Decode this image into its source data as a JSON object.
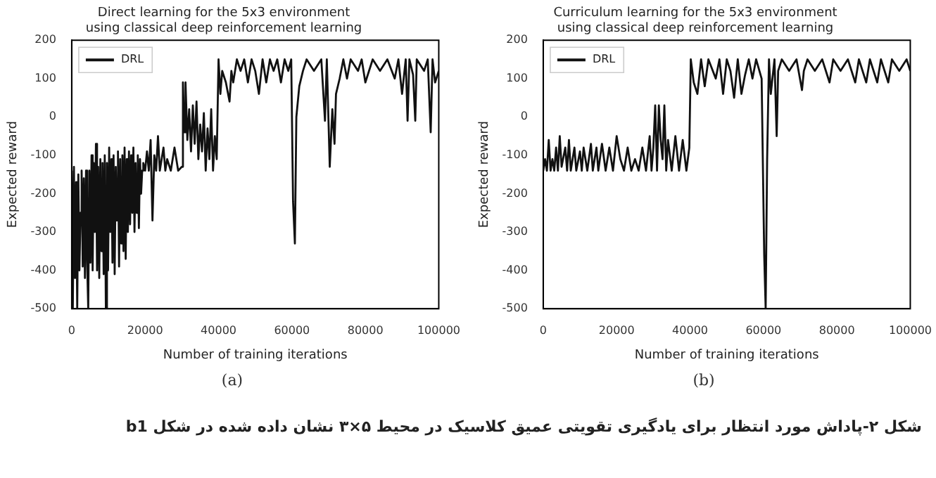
{
  "chart_data": [
    {
      "type": "line",
      "title": "Direct learning for the 5x3 environment\nusing classical deep reinforcement learning",
      "xlabel": "Number of training iterations",
      "ylabel": "Expected reward",
      "xlim": [
        0,
        100000
      ],
      "ylim": [
        -500,
        200
      ],
      "xticks": [
        0,
        20000,
        40000,
        60000,
        80000,
        100000
      ],
      "yticks": [
        -500,
        -400,
        -300,
        -200,
        -100,
        0,
        100,
        200
      ],
      "legend": "top left",
      "annotations": [
        "(a)"
      ],
      "x": [
        0,
        300,
        600,
        900,
        1200,
        1500,
        1800,
        2100,
        2400,
        2700,
        3000,
        3300,
        3600,
        3900,
        4200,
        4500,
        4800,
        5100,
        5400,
        5700,
        6000,
        6300,
        6600,
        6900,
        7200,
        7500,
        7800,
        8100,
        8400,
        8700,
        9000,
        9300,
        9600,
        9900,
        10200,
        10500,
        10800,
        11100,
        11400,
        11700,
        12000,
        12300,
        12600,
        12900,
        13200,
        13500,
        13800,
        14100,
        14400,
        14700,
        15000,
        15300,
        15600,
        15900,
        16200,
        16500,
        16800,
        17100,
        17400,
        17700,
        18000,
        18300,
        18600,
        18900,
        19200,
        19500,
        20000,
        20500,
        21000,
        21500,
        22000,
        22500,
        23000,
        23500,
        24000,
        25000,
        25500,
        26000,
        27000,
        28000,
        29000,
        30000,
        30300,
        30700,
        31000,
        31500,
        32000,
        32500,
        33000,
        33500,
        34000,
        34500,
        35000,
        35500,
        36000,
        36500,
        37000,
        37500,
        38000,
        38500,
        39000,
        39500,
        40000,
        40500,
        41000,
        42000,
        43000,
        43500,
        44000,
        45000,
        46000,
        47000,
        48000,
        49000,
        50000,
        51000,
        52000,
        53000,
        54000,
        55000,
        56000,
        57000,
        58000,
        59000,
        59800,
        60300,
        60800,
        61200,
        62000,
        63000,
        64000,
        66000,
        68000,
        69000,
        69500,
        70300,
        71000,
        71600,
        72000,
        73000,
        74000,
        75000,
        76000,
        78000,
        79000,
        80000,
        82000,
        84000,
        86000,
        88000,
        89000,
        90000,
        91000,
        91500,
        92000,
        93000,
        93600,
        94000,
        96000,
        97000,
        97800,
        98300,
        99000,
        100000
      ],
      "series": [
        {
          "name": "DRL",
          "color": "#111111",
          "values": [
            -140,
            -500,
            -130,
            -420,
            -170,
            -500,
            -150,
            -400,
            -250,
            -140,
            -390,
            -160,
            -420,
            -140,
            -380,
            -500,
            -140,
            -380,
            -100,
            -400,
            -120,
            -300,
            -70,
            -400,
            -130,
            -420,
            -110,
            -350,
            -120,
            -410,
            -100,
            -500,
            -120,
            -400,
            -80,
            -300,
            -110,
            -380,
            -100,
            -410,
            -130,
            -270,
            -90,
            -390,
            -110,
            -330,
            -100,
            -350,
            -80,
            -370,
            -110,
            -300,
            -90,
            -280,
            -100,
            -250,
            -80,
            -300,
            -120,
            -250,
            -100,
            -290,
            -110,
            -200,
            -140,
            -120,
            -140,
            -90,
            -140,
            -60,
            -270,
            -100,
            -140,
            -50,
            -140,
            -80,
            -140,
            -110,
            -140,
            -80,
            -140,
            -130,
            90,
            -40,
            90,
            -60,
            20,
            -90,
            30,
            -70,
            40,
            -110,
            -20,
            -90,
            10,
            -140,
            -30,
            -110,
            20,
            -140,
            -50,
            -110,
            150,
            60,
            120,
            90,
            40,
            120,
            90,
            150,
            120,
            150,
            90,
            150,
            120,
            60,
            150,
            90,
            150,
            120,
            150,
            90,
            150,
            120,
            150,
            -220,
            -330,
            0,
            80,
            120,
            150,
            120,
            150,
            -10,
            150,
            -130,
            20,
            -70,
            60,
            100,
            150,
            100,
            150,
            120,
            150,
            90,
            150,
            120,
            150,
            100,
            150,
            60,
            150,
            -10,
            150,
            110,
            -10,
            150,
            120,
            150,
            -40,
            150,
            90,
            120
          ]
        }
      ]
    },
    {
      "type": "line",
      "title": "Curriculum learning for the 5x3 environment\nusing classical deep reinforcement learning",
      "xlabel": "Number of training iterations",
      "ylabel": "Expected reward",
      "xlim": [
        0,
        100000
      ],
      "ylim": [
        -500,
        200
      ],
      "xticks": [
        0,
        20000,
        40000,
        60000,
        80000,
        100000
      ],
      "yticks": [
        -500,
        -400,
        -300,
        -200,
        -100,
        0,
        100,
        200
      ],
      "legend": "top left",
      "annotations": [
        "(b)",
        "شکل ۲-پاداش مورد انتظار برای یادگیری تقویتی عمیق کلاسیک در محیط ۵×۳ نشان داده شده در شکل b1"
      ],
      "x": [
        0,
        500,
        1000,
        1500,
        2000,
        2500,
        3000,
        3500,
        4000,
        4500,
        5000,
        6000,
        6500,
        7000,
        7500,
        8500,
        9000,
        10000,
        10500,
        11000,
        12000,
        13000,
        13500,
        14500,
        15000,
        16000,
        17000,
        18000,
        19000,
        20000,
        21000,
        22000,
        23000,
        24000,
        25000,
        26000,
        27000,
        28000,
        29000,
        29500,
        30000,
        30500,
        31000,
        31500,
        32000,
        32500,
        33000,
        33500,
        34000,
        35000,
        36000,
        37000,
        38000,
        39000,
        39800,
        40200,
        41000,
        42000,
        43000,
        44000,
        45000,
        47000,
        48000,
        49000,
        50000,
        51000,
        52000,
        53000,
        54000,
        55000,
        56000,
        57000,
        58000,
        59500,
        60200,
        60600,
        61000,
        61500,
        62000,
        63000,
        63600,
        64000,
        65000,
        67000,
        69000,
        70500,
        71000,
        72000,
        74000,
        76000,
        78000,
        79000,
        81000,
        83000,
        85000,
        86000,
        88000,
        89000,
        91000,
        92000,
        94000,
        95000,
        97000,
        99000,
        100000
      ],
      "series": [
        {
          "name": "DRL",
          "color": "#111111",
          "values": [
            -140,
            -110,
            -140,
            -60,
            -140,
            -110,
            -140,
            -80,
            -140,
            -50,
            -130,
            -80,
            -140,
            -60,
            -140,
            -80,
            -140,
            -90,
            -140,
            -80,
            -140,
            -70,
            -140,
            -80,
            -140,
            -70,
            -140,
            -80,
            -140,
            -50,
            -110,
            -140,
            -80,
            -140,
            -110,
            -140,
            -80,
            -140,
            -50,
            -140,
            -80,
            30,
            -140,
            30,
            -60,
            -110,
            30,
            -140,
            -60,
            -140,
            -50,
            -140,
            -60,
            -140,
            -80,
            150,
            90,
            60,
            150,
            80,
            150,
            100,
            150,
            60,
            150,
            120,
            50,
            150,
            60,
            110,
            150,
            100,
            150,
            100,
            -360,
            -500,
            -110,
            150,
            60,
            150,
            -50,
            120,
            150,
            120,
            150,
            70,
            120,
            150,
            120,
            150,
            90,
            150,
            120,
            150,
            90,
            150,
            90,
            150,
            90,
            150,
            90,
            150,
            120,
            150,
            120
          ]
        }
      ]
    }
  ]
}
